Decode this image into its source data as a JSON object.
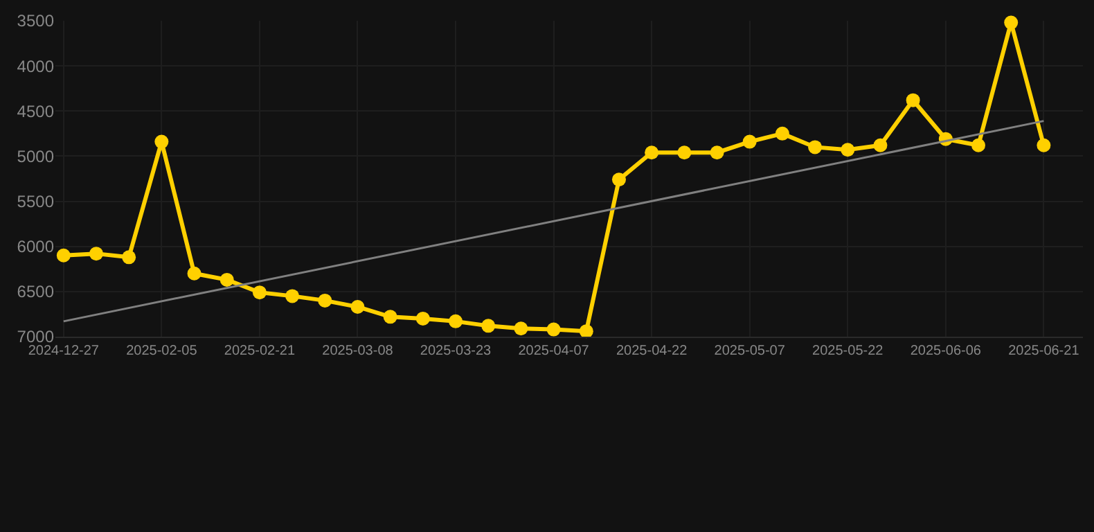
{
  "chart_data": {
    "type": "line",
    "categories": [
      "2024-12-27",
      null,
      null,
      "2025-02-05",
      null,
      null,
      "2025-02-21",
      null,
      null,
      "2025-03-08",
      null,
      null,
      "2025-03-23",
      null,
      null,
      "2025-04-07",
      null,
      null,
      "2025-04-22",
      null,
      null,
      "2025-05-07",
      null,
      null,
      "2025-05-22",
      null,
      null,
      "2025-06-06",
      null,
      null,
      "2025-06-21"
    ],
    "series": [
      {
        "color": "#ffd000",
        "marker": "circle",
        "line_style": "solid",
        "values": [
          6100,
          6080,
          6120,
          4840,
          6300,
          6370,
          6510,
          6550,
          6600,
          6670,
          6780,
          6800,
          6830,
          6880,
          6910,
          6920,
          6940,
          5260,
          4960,
          4960,
          4960,
          4840,
          4750,
          4900,
          4930,
          4880,
          4380,
          4810,
          4880,
          3520,
          4880
        ]
      },
      {
        "type": "line",
        "color": "#808080",
        "marker": "none",
        "line_style": "solid",
        "values": [
          6830,
          null,
          null,
          null,
          null,
          null,
          null,
          null,
          null,
          null,
          null,
          null,
          null,
          null,
          null,
          null,
          null,
          null,
          null,
          null,
          null,
          null,
          null,
          null,
          null,
          null,
          null,
          null,
          null,
          null,
          4610
        ]
      }
    ],
    "ylim": [
      7000,
      3500
    ],
    "yticks": [
      3500,
      4000,
      4500,
      5000,
      5500,
      6000,
      6500,
      7000
    ],
    "grid": true
  }
}
